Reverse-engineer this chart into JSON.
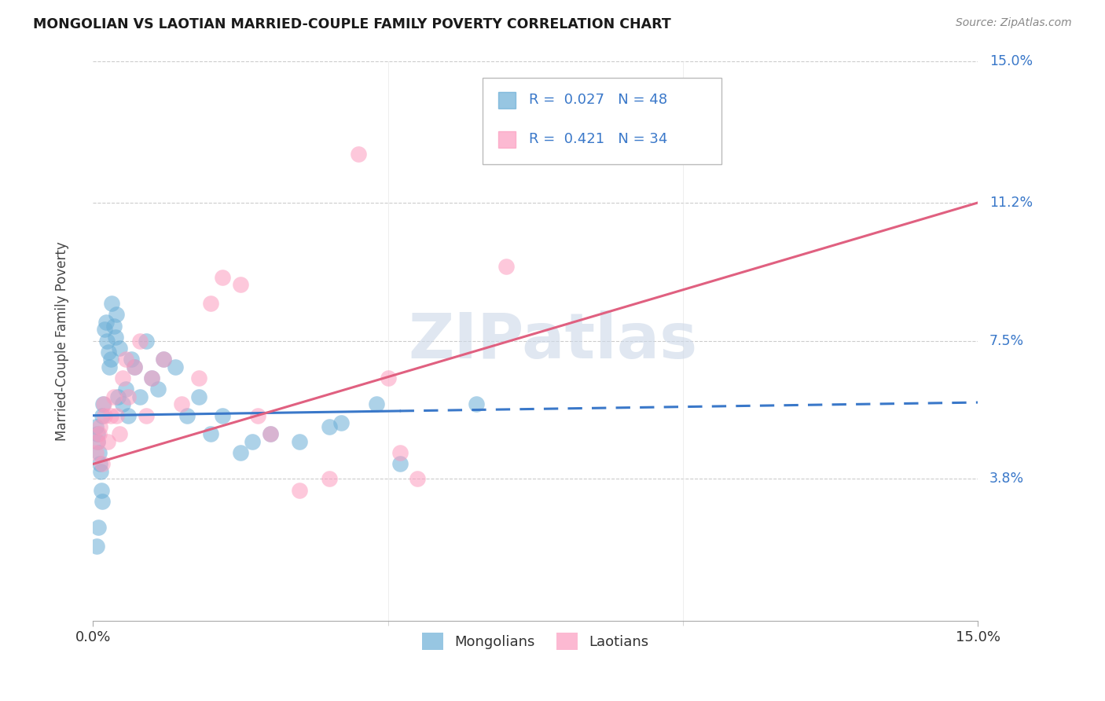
{
  "title": "MONGOLIAN VS LAOTIAN MARRIED-COUPLE FAMILY POVERTY CORRELATION CHART",
  "source": "Source: ZipAtlas.com",
  "ylabel": "Married-Couple Family Poverty",
  "y_tick_labels": [
    "3.8%",
    "7.5%",
    "11.2%",
    "15.0%"
  ],
  "y_tick_values": [
    3.8,
    7.5,
    11.2,
    15.0
  ],
  "xmin": 0.0,
  "xmax": 15.0,
  "ymin": 0.0,
  "ymax": 15.0,
  "mongolian_color": "#6baed6",
  "laotian_color": "#fc9cbf",
  "mongolian_line_color": "#3a78c9",
  "laotian_line_color": "#e06080",
  "mongolian_r": "0.027",
  "mongolian_n": "48",
  "laotian_r": "0.421",
  "laotian_n": "34",
  "legend_label_mongolians": "Mongolians",
  "legend_label_laotians": "Laotians",
  "watermark": "ZIPatlas",
  "mongolian_x": [
    0.05,
    0.07,
    0.08,
    0.1,
    0.11,
    0.13,
    0.14,
    0.15,
    0.16,
    0.17,
    0.2,
    0.22,
    0.24,
    0.26,
    0.28,
    0.3,
    0.32,
    0.35,
    0.38,
    0.4,
    0.42,
    0.45,
    0.5,
    0.55,
    0.6,
    0.65,
    0.7,
    0.8,
    0.9,
    1.0,
    1.1,
    1.2,
    1.4,
    1.6,
    1.8,
    2.0,
    2.2,
    2.5,
    2.7,
    3.0,
    3.5,
    4.0,
    4.2,
    4.8,
    5.2,
    6.5,
    0.06,
    0.09
  ],
  "mongolian_y": [
    5.2,
    5.0,
    4.8,
    4.5,
    4.2,
    4.0,
    3.5,
    3.2,
    5.5,
    5.8,
    7.8,
    8.0,
    7.5,
    7.2,
    6.8,
    7.0,
    8.5,
    7.9,
    7.6,
    8.2,
    6.0,
    7.3,
    5.8,
    6.2,
    5.5,
    7.0,
    6.8,
    6.0,
    7.5,
    6.5,
    6.2,
    7.0,
    6.8,
    5.5,
    6.0,
    5.0,
    5.5,
    4.5,
    4.8,
    5.0,
    4.8,
    5.2,
    5.3,
    5.8,
    4.2,
    5.8,
    2.0,
    2.5
  ],
  "laotian_x": [
    0.05,
    0.08,
    0.1,
    0.12,
    0.15,
    0.18,
    0.2,
    0.25,
    0.3,
    0.35,
    0.4,
    0.45,
    0.5,
    0.55,
    0.6,
    0.7,
    0.8,
    0.9,
    1.0,
    1.2,
    1.5,
    1.8,
    2.0,
    2.2,
    2.5,
    2.8,
    3.0,
    3.5,
    4.0,
    5.0,
    5.5,
    5.2,
    7.0,
    4.5
  ],
  "laotian_y": [
    4.5,
    4.8,
    5.0,
    5.2,
    4.2,
    5.8,
    5.5,
    4.8,
    5.5,
    6.0,
    5.5,
    5.0,
    6.5,
    7.0,
    6.0,
    6.8,
    7.5,
    5.5,
    6.5,
    7.0,
    5.8,
    6.5,
    8.5,
    9.2,
    9.0,
    5.5,
    5.0,
    3.5,
    3.8,
    6.5,
    3.8,
    4.5,
    9.5,
    12.5
  ],
  "mongo_line_y0": 5.5,
  "mongo_line_y_at15": 5.85,
  "laot_line_y0": 4.2,
  "laot_line_y_at15": 11.2,
  "solid_end_x": 5.2
}
